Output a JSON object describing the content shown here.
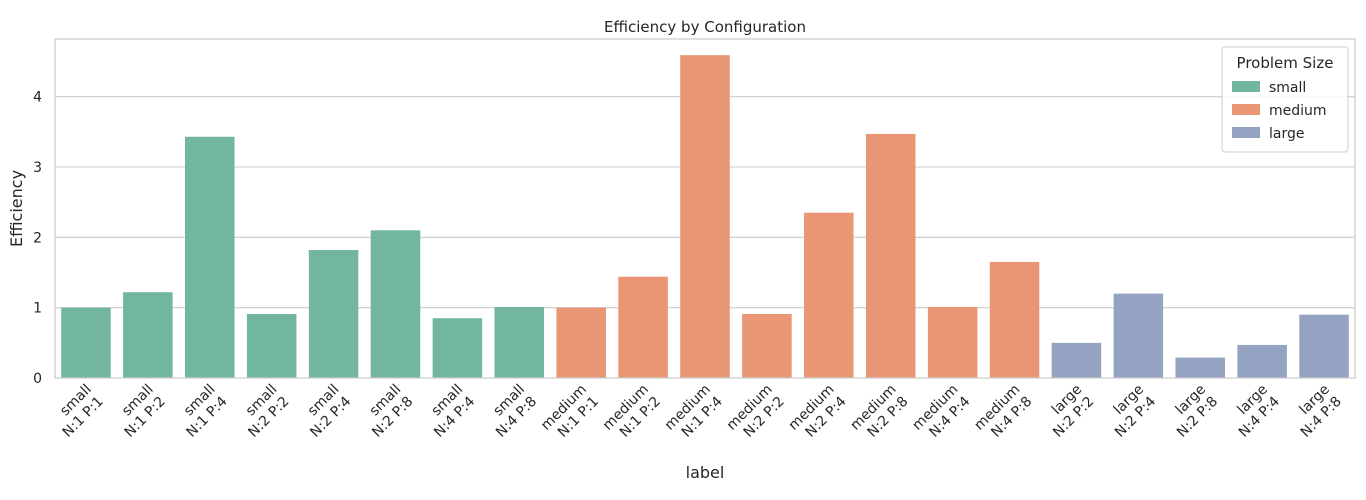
{
  "chart_data": {
    "type": "bar",
    "title": "Efficiency by Configuration",
    "xlabel": "label",
    "ylabel": "Efficiency",
    "ylim": [
      0,
      4.82
    ],
    "yticks": [
      0,
      1,
      2,
      3,
      4
    ],
    "grid": true,
    "legend": {
      "title": "Problem Size",
      "placement": "top-right",
      "entries": [
        {
          "name": "small",
          "color": "#72b6a1"
        },
        {
          "name": "medium",
          "color": "#e99675"
        },
        {
          "name": "large",
          "color": "#95a3c3"
        }
      ]
    },
    "bars": [
      {
        "line1": "small",
        "line2": "N:1 P:1",
        "group": "small",
        "value": 1.0
      },
      {
        "line1": "small",
        "line2": "N:1 P:2",
        "group": "small",
        "value": 1.22
      },
      {
        "line1": "small",
        "line2": "N:1 P:4",
        "group": "small",
        "value": 3.43
      },
      {
        "line1": "small",
        "line2": "N:2 P:2",
        "group": "small",
        "value": 0.91
      },
      {
        "line1": "small",
        "line2": "N:2 P:4",
        "group": "small",
        "value": 1.82
      },
      {
        "line1": "small",
        "line2": "N:2 P:8",
        "group": "small",
        "value": 2.1
      },
      {
        "line1": "small",
        "line2": "N:4 P:4",
        "group": "small",
        "value": 0.85
      },
      {
        "line1": "small",
        "line2": "N:4 P:8",
        "group": "small",
        "value": 1.01
      },
      {
        "line1": "medium",
        "line2": "N:1 P:1",
        "group": "medium",
        "value": 1.0
      },
      {
        "line1": "medium",
        "line2": "N:1 P:2",
        "group": "medium",
        "value": 1.44
      },
      {
        "line1": "medium",
        "line2": "N:1 P:4",
        "group": "medium",
        "value": 4.59
      },
      {
        "line1": "medium",
        "line2": "N:2 P:2",
        "group": "medium",
        "value": 0.91
      },
      {
        "line1": "medium",
        "line2": "N:2 P:4",
        "group": "medium",
        "value": 2.35
      },
      {
        "line1": "medium",
        "line2": "N:2 P:8",
        "group": "medium",
        "value": 3.47
      },
      {
        "line1": "medium",
        "line2": "N:4 P:4",
        "group": "medium",
        "value": 1.01
      },
      {
        "line1": "medium",
        "line2": "N:4 P:8",
        "group": "medium",
        "value": 1.65
      },
      {
        "line1": "large",
        "line2": "N:2 P:2",
        "group": "large",
        "value": 0.5
      },
      {
        "line1": "large",
        "line2": "N:2 P:4",
        "group": "large",
        "value": 1.2
      },
      {
        "line1": "large",
        "line2": "N:2 P:8",
        "group": "large",
        "value": 0.29
      },
      {
        "line1": "large",
        "line2": "N:4 P:4",
        "group": "large",
        "value": 0.47
      },
      {
        "line1": "large",
        "line2": "N:4 P:8",
        "group": "large",
        "value": 0.9
      }
    ]
  }
}
